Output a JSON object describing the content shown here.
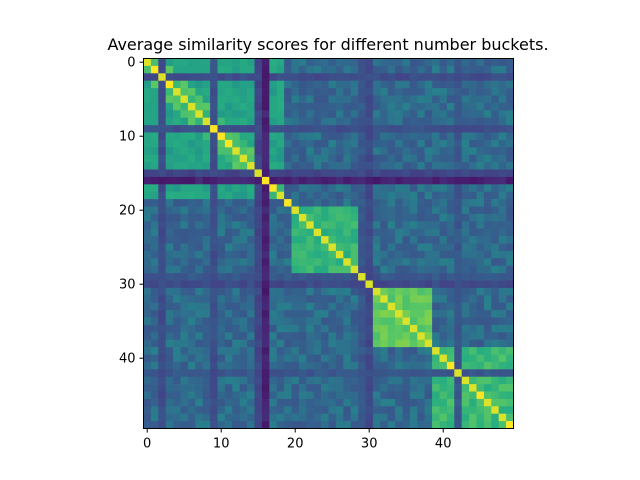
{
  "chart_data": {
    "type": "heatmap",
    "title": "Average similarity scores for different number buckets.",
    "xlabel": "",
    "ylabel": "",
    "size": 50,
    "xticks": [
      0,
      10,
      20,
      30,
      40
    ],
    "yticks": [
      0,
      10,
      20,
      30,
      40
    ],
    "colormap": "viridis",
    "value_range": [
      0,
      1
    ],
    "grid": false,
    "blocks": [
      {
        "start": 0,
        "end": 18,
        "level": 0.58
      },
      {
        "start": 20,
        "end": 28,
        "level": 0.66
      },
      {
        "start": 31,
        "end": 38,
        "level": 0.76
      },
      {
        "start": 39,
        "end": 49,
        "level": 0.68
      }
    ],
    "dark_rows": [
      {
        "index": 16,
        "level": 0.08
      },
      {
        "index": 15,
        "level": 0.22
      },
      {
        "index": 2,
        "level": 0.25
      },
      {
        "index": 9,
        "level": 0.26
      },
      {
        "index": 30,
        "level": 0.24
      },
      {
        "index": 29,
        "level": 0.3
      },
      {
        "index": 42,
        "level": 0.3
      }
    ],
    "diagonal_value": 0.95,
    "diagonal_peaks": [
      1,
      3,
      9,
      10,
      11,
      16,
      17,
      19,
      41,
      45,
      49
    ]
  }
}
